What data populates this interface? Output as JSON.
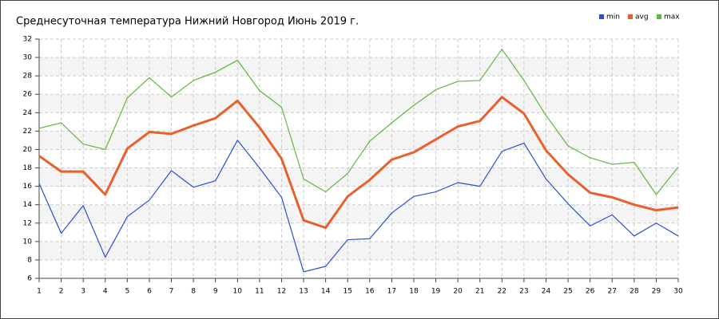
{
  "chart_data": {
    "type": "line",
    "title": "Среднесуточная температура Нижний Новгород  Июнь 2019 г.",
    "x": [
      1,
      2,
      3,
      4,
      5,
      6,
      7,
      8,
      9,
      10,
      11,
      12,
      13,
      14,
      15,
      16,
      17,
      18,
      19,
      20,
      21,
      22,
      23,
      24,
      25,
      26,
      27,
      28,
      29,
      30
    ],
    "xlim": [
      1,
      30
    ],
    "xticks": [
      1,
      2,
      3,
      4,
      5,
      6,
      7,
      8,
      9,
      10,
      11,
      12,
      13,
      14,
      15,
      16,
      17,
      18,
      19,
      20,
      21,
      22,
      23,
      24,
      25,
      26,
      27,
      28,
      29,
      30
    ],
    "ylim": [
      6,
      32
    ],
    "yticks": [
      6,
      8,
      10,
      12,
      14,
      16,
      18,
      20,
      22,
      24,
      26,
      28,
      30,
      32
    ],
    "grid": true,
    "legend": "top-right",
    "series": [
      {
        "name": "min",
        "color": "#2a4fd4",
        "values": [
          16.3,
          10.9,
          13.9,
          8.3,
          12.7,
          14.5,
          17.7,
          15.9,
          16.6,
          21.0,
          18.0,
          14.8,
          6.7,
          7.3,
          10.2,
          10.3,
          13.1,
          14.9,
          15.4,
          16.4,
          16.0,
          19.8,
          20.7,
          16.8,
          14.1,
          11.7,
          12.9,
          10.6,
          12.0,
          10.6
        ]
      },
      {
        "name": "avg",
        "color": "#e8602c",
        "values": [
          19.3,
          17.6,
          17.6,
          15.1,
          20.1,
          21.9,
          21.7,
          22.6,
          23.4,
          25.3,
          22.4,
          19.0,
          12.3,
          11.5,
          14.9,
          16.7,
          18.9,
          19.7,
          21.1,
          22.5,
          23.1,
          25.7,
          23.9,
          19.9,
          17.3,
          15.3,
          14.8,
          14.0,
          13.4,
          13.7
        ]
      },
      {
        "name": "max",
        "color": "#5cb83c",
        "values": [
          22.3,
          22.9,
          20.6,
          20.0,
          25.6,
          27.8,
          25.7,
          27.5,
          28.4,
          29.7,
          26.4,
          24.6,
          16.8,
          15.4,
          17.4,
          20.9,
          22.9,
          24.8,
          26.5,
          27.4,
          27.5,
          30.9,
          27.5,
          23.7,
          20.4,
          19.1,
          18.4,
          18.6,
          15.1,
          18.1
        ]
      }
    ]
  }
}
